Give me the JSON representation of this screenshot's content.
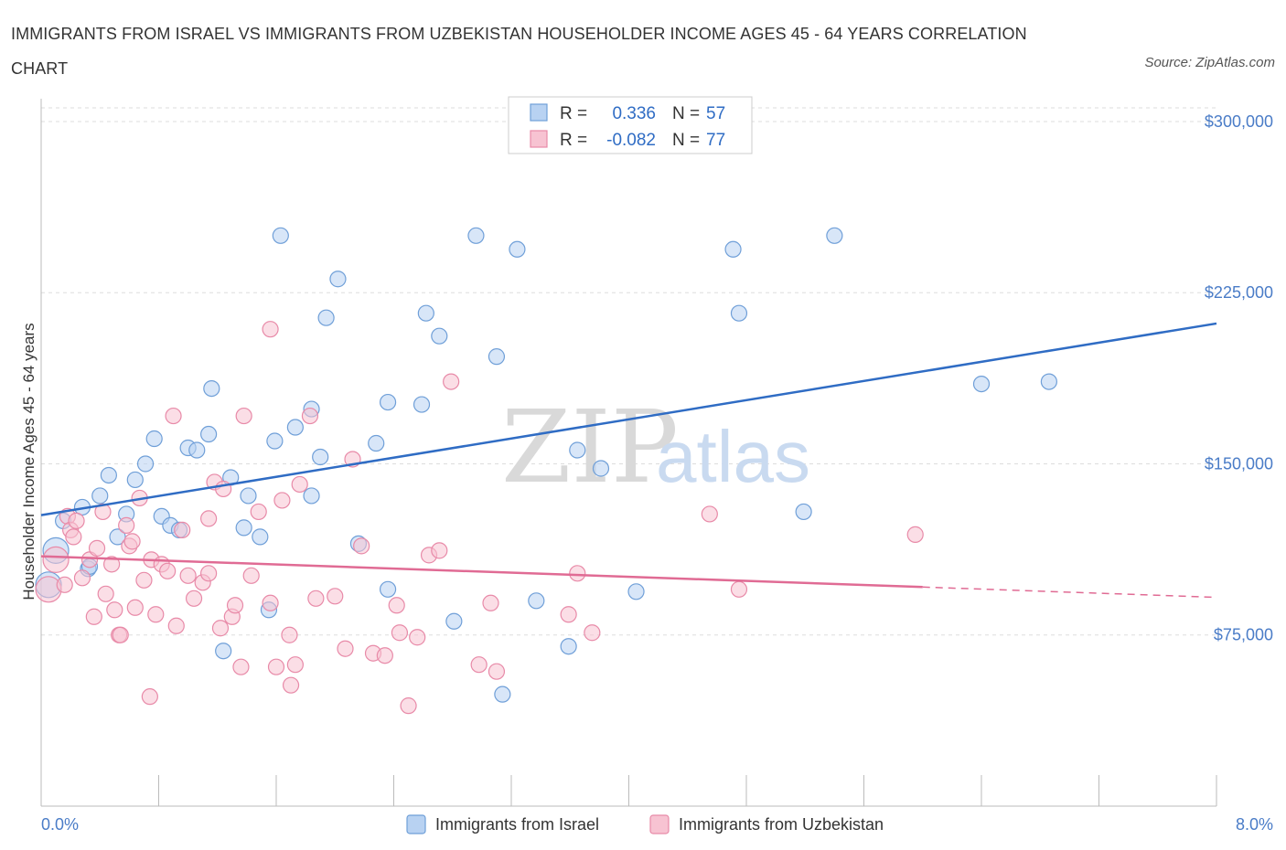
{
  "title": "IMMIGRANTS FROM ISRAEL VS IMMIGRANTS FROM UZBEKISTAN HOUSEHOLDER INCOME AGES 45 - 64 YEARS CORRELATION CHART",
  "source": "Source: ZipAtlas.com",
  "watermark": {
    "zip": "ZIP",
    "atlas": "atlas"
  },
  "colors": {
    "israel_fill": "#b8d2f2",
    "israel_stroke": "#6f9fd8",
    "israel_line": "#2f6cc4",
    "uzbek_fill": "#f7c3d2",
    "uzbek_stroke": "#e88aa8",
    "uzbek_line": "#e06b94",
    "grid": "#dddddd",
    "axis_text": "#4a7cc7"
  },
  "legend": {
    "rows": [
      {
        "r_label": "R =",
        "r_value": "0.336",
        "n_label": "N =",
        "n_value": "57"
      },
      {
        "r_label": "R =",
        "r_value": "-0.082",
        "n_label": "N =",
        "n_value": "77"
      }
    ]
  },
  "chart_data": {
    "type": "scatter",
    "xlabel": "",
    "ylabel": "Householder Income Ages 45 - 64 years",
    "xlim": [
      0,
      8
    ],
    "ylim": [
      0,
      310000
    ],
    "x_tick_labels": [
      "0.0%",
      "8.0%"
    ],
    "y_ticks": [
      75000,
      150000,
      225000,
      300000
    ],
    "y_tick_labels": [
      "$75,000",
      "$150,000",
      "$225,000",
      "$300,000"
    ],
    "grid": true,
    "legend_position": "top-center",
    "series": [
      {
        "name": "Immigrants from Israel",
        "r": 0.336,
        "n": 57,
        "trend": {
          "x0": 0.0,
          "y0": 127500,
          "x1": 8.0,
          "y1": 211500,
          "dashed_from": null
        },
        "points": [
          [
            0.1,
            112000
          ],
          [
            0.15,
            125000
          ],
          [
            0.28,
            131000
          ],
          [
            0.32,
            104000
          ],
          [
            0.4,
            136000
          ],
          [
            0.46,
            145000
          ],
          [
            0.52,
            118000
          ],
          [
            0.58,
            128000
          ],
          [
            0.64,
            143000
          ],
          [
            0.71,
            150000
          ],
          [
            0.77,
            161000
          ],
          [
            0.82,
            127000
          ],
          [
            0.88,
            123000
          ],
          [
            0.94,
            121000
          ],
          [
            1.0,
            157000
          ],
          [
            1.06,
            156000
          ],
          [
            1.14,
            163000
          ],
          [
            1.16,
            183000
          ],
          [
            1.24,
            68000
          ],
          [
            1.29,
            144000
          ],
          [
            1.38,
            122000
          ],
          [
            1.41,
            136000
          ],
          [
            1.49,
            118000
          ],
          [
            1.55,
            86000
          ],
          [
            1.59,
            160000
          ],
          [
            1.63,
            250000
          ],
          [
            1.73,
            166000
          ],
          [
            1.84,
            174000
          ],
          [
            1.84,
            136000
          ],
          [
            1.9,
            153000
          ],
          [
            1.94,
            214000
          ],
          [
            2.02,
            231000
          ],
          [
            2.16,
            115000
          ],
          [
            2.28,
            159000
          ],
          [
            2.36,
            177000
          ],
          [
            2.36,
            95000
          ],
          [
            2.59,
            176000
          ],
          [
            2.62,
            216000
          ],
          [
            2.71,
            206000
          ],
          [
            2.81,
            81000
          ],
          [
            2.96,
            250000
          ],
          [
            3.1,
            197000
          ],
          [
            3.14,
            49000
          ],
          [
            3.24,
            244000
          ],
          [
            3.37,
            90000
          ],
          [
            3.59,
            70000
          ],
          [
            3.65,
            156000
          ],
          [
            3.81,
            148000
          ],
          [
            4.05,
            94000
          ],
          [
            4.71,
            244000
          ],
          [
            4.75,
            216000
          ],
          [
            5.19,
            129000
          ],
          [
            5.4,
            250000
          ],
          [
            6.4,
            185000
          ],
          [
            6.86,
            186000
          ],
          [
            0.05,
            97000
          ],
          [
            0.33,
            105000
          ]
        ]
      },
      {
        "name": "Immigrants from Uzbekistan",
        "r": -0.082,
        "n": 77,
        "trend": {
          "x0": 0.0,
          "y0": 109500,
          "x1": 8.0,
          "y1": 91500,
          "dashed_from": 6.0
        },
        "points": [
          [
            0.05,
            95000
          ],
          [
            0.1,
            108000
          ],
          [
            0.16,
            97000
          ],
          [
            0.18,
            127000
          ],
          [
            0.2,
            121000
          ],
          [
            0.24,
            125000
          ],
          [
            0.28,
            100000
          ],
          [
            0.33,
            108000
          ],
          [
            0.36,
            83000
          ],
          [
            0.38,
            113000
          ],
          [
            0.42,
            129000
          ],
          [
            0.44,
            93000
          ],
          [
            0.48,
            106000
          ],
          [
            0.5,
            86000
          ],
          [
            0.53,
            75000
          ],
          [
            0.58,
            123000
          ],
          [
            0.6,
            114000
          ],
          [
            0.62,
            116000
          ],
          [
            0.64,
            87000
          ],
          [
            0.67,
            135000
          ],
          [
            0.7,
            99000
          ],
          [
            0.75,
            108000
          ],
          [
            0.78,
            84000
          ],
          [
            0.82,
            106000
          ],
          [
            0.86,
            103000
          ],
          [
            0.9,
            171000
          ],
          [
            0.92,
            79000
          ],
          [
            0.96,
            121000
          ],
          [
            1.0,
            101000
          ],
          [
            1.04,
            91000
          ],
          [
            1.1,
            98000
          ],
          [
            1.14,
            126000
          ],
          [
            1.18,
            142000
          ],
          [
            1.22,
            78000
          ],
          [
            1.24,
            139000
          ],
          [
            1.3,
            83000
          ],
          [
            1.32,
            88000
          ],
          [
            1.36,
            61000
          ],
          [
            1.38,
            171000
          ],
          [
            1.43,
            101000
          ],
          [
            1.48,
            129000
          ],
          [
            1.56,
            89000
          ],
          [
            1.6,
            61000
          ],
          [
            1.64,
            134000
          ],
          [
            1.69,
            75000
          ],
          [
            1.73,
            62000
          ],
          [
            1.76,
            141000
          ],
          [
            1.83,
            171000
          ],
          [
            1.87,
            91000
          ],
          [
            2.0,
            92000
          ],
          [
            2.07,
            69000
          ],
          [
            2.12,
            152000
          ],
          [
            2.18,
            114000
          ],
          [
            2.26,
            67000
          ],
          [
            2.34,
            66000
          ],
          [
            2.42,
            88000
          ],
          [
            2.44,
            76000
          ],
          [
            2.5,
            44000
          ],
          [
            2.56,
            74000
          ],
          [
            2.64,
            110000
          ],
          [
            2.71,
            112000
          ],
          [
            2.79,
            186000
          ],
          [
            2.98,
            62000
          ],
          [
            3.06,
            89000
          ],
          [
            3.1,
            59000
          ],
          [
            3.59,
            84000
          ],
          [
            3.65,
            102000
          ],
          [
            3.75,
            76000
          ],
          [
            4.55,
            128000
          ],
          [
            4.75,
            95000
          ],
          [
            5.95,
            119000
          ],
          [
            1.56,
            209000
          ],
          [
            1.14,
            102000
          ],
          [
            0.74,
            48000
          ],
          [
            0.54,
            75000
          ],
          [
            0.22,
            118000
          ],
          [
            1.7,
            53000
          ]
        ]
      }
    ]
  },
  "bottom_legend": {
    "items": [
      {
        "label": "Immigrants from Israel"
      },
      {
        "label": "Immigrants from Uzbekistan"
      }
    ]
  }
}
